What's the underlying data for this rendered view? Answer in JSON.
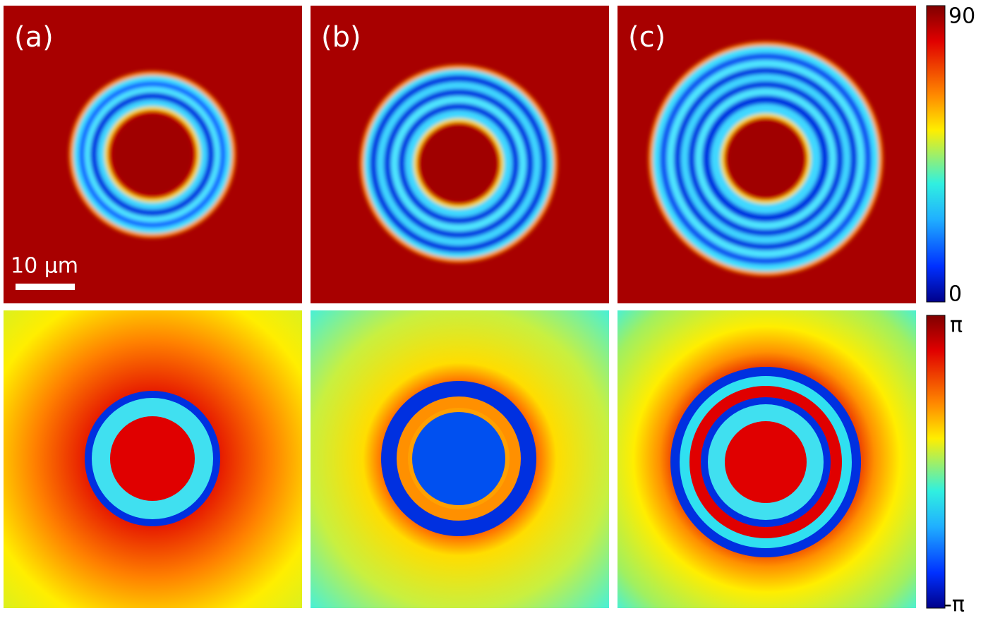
{
  "panels": [
    {
      "label": "(a)"
    },
    {
      "label": "(b)"
    },
    {
      "label": "(c)"
    }
  ],
  "scale_bar": {
    "label": "10 μm"
  },
  "colorbars": [
    {
      "max": "90",
      "min": "0"
    },
    {
      "max": "π",
      "min": "-π"
    }
  ]
}
